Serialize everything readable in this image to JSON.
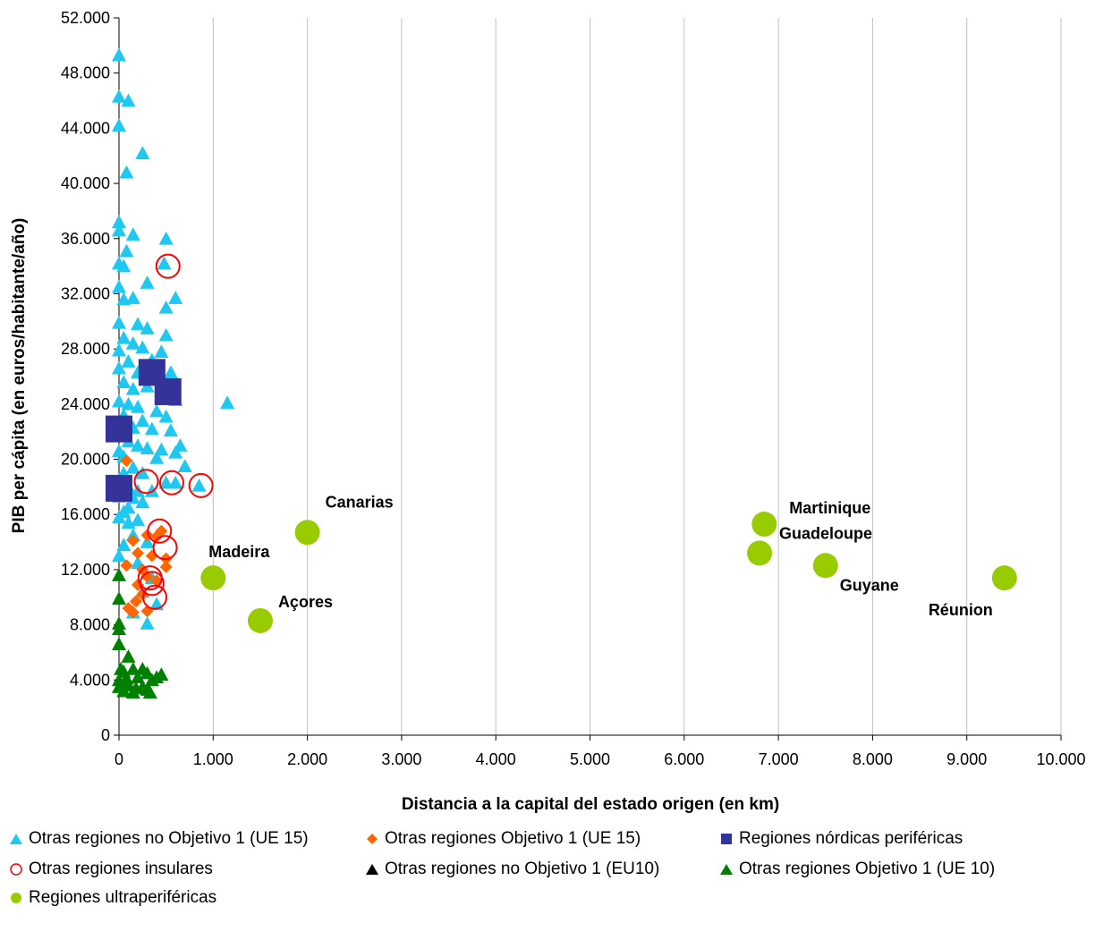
{
  "chart_data": {
    "type": "scatter",
    "title": "",
    "xlabel": "Distancia a la capital del estado origen (en km)",
    "ylabel": "PIB per cápita (en euros/habitante/año)",
    "xlim": [
      0,
      10000
    ],
    "ylim": [
      0,
      52000
    ],
    "x_ticks": [
      0,
      1000,
      2000,
      3000,
      4000,
      5000,
      6000,
      7000,
      8000,
      9000,
      10000
    ],
    "x_tick_labels": [
      "0",
      "1.000",
      "2.000",
      "3.000",
      "4.000",
      "5.000",
      "6.000",
      "7.000",
      "8.000",
      "9.000",
      "10.000"
    ],
    "y_ticks": [
      0,
      4000,
      8000,
      12000,
      16000,
      20000,
      24000,
      28000,
      32000,
      36000,
      40000,
      44000,
      48000,
      52000
    ],
    "y_tick_labels": [
      "0",
      "4.000",
      "8.000",
      "12.000",
      "16.000",
      "20.000",
      "24.000",
      "28.000",
      "32.000",
      "36.000",
      "40.000",
      "44.000",
      "48.000",
      "52.000"
    ],
    "grid": "vertical",
    "legend_position": "bottom",
    "series": [
      {
        "name": "Otras regiones no Objetivo 1 (UE 15)",
        "marker": "triangle",
        "color": "#1EC8F0",
        "points": [
          [
            0,
            49300
          ],
          [
            0,
            46300
          ],
          [
            100,
            46000
          ],
          [
            0,
            44200
          ],
          [
            250,
            42200
          ],
          [
            80,
            40800
          ],
          [
            0,
            37200
          ],
          [
            0,
            36600
          ],
          [
            150,
            36300
          ],
          [
            500,
            36000
          ],
          [
            80,
            35100
          ],
          [
            0,
            34200
          ],
          [
            50,
            34000
          ],
          [
            480,
            34200
          ],
          [
            0,
            32500
          ],
          [
            300,
            32800
          ],
          [
            600,
            31700
          ],
          [
            50,
            31600
          ],
          [
            150,
            31700
          ],
          [
            500,
            31000
          ],
          [
            0,
            29900
          ],
          [
            200,
            29800
          ],
          [
            300,
            29500
          ],
          [
            500,
            29000
          ],
          [
            50,
            28800
          ],
          [
            150,
            28400
          ],
          [
            0,
            27900
          ],
          [
            250,
            28100
          ],
          [
            450,
            27800
          ],
          [
            100,
            27100
          ],
          [
            350,
            27200
          ],
          [
            0,
            26600
          ],
          [
            200,
            26300
          ],
          [
            550,
            26300
          ],
          [
            50,
            25600
          ],
          [
            150,
            25100
          ],
          [
            300,
            25300
          ],
          [
            600,
            24300
          ],
          [
            1150,
            24100
          ],
          [
            0,
            24200
          ],
          [
            100,
            24000
          ],
          [
            200,
            23800
          ],
          [
            400,
            23500
          ],
          [
            50,
            23200
          ],
          [
            250,
            22800
          ],
          [
            500,
            23100
          ],
          [
            0,
            22400
          ],
          [
            150,
            22300
          ],
          [
            350,
            22200
          ],
          [
            550,
            22100
          ],
          [
            650,
            21000
          ],
          [
            100,
            21300
          ],
          [
            200,
            21000
          ],
          [
            300,
            20800
          ],
          [
            450,
            20700
          ],
          [
            0,
            20600
          ],
          [
            50,
            20200
          ],
          [
            600,
            20500
          ],
          [
            400,
            20100
          ],
          [
            700,
            19500
          ],
          [
            150,
            19400
          ],
          [
            250,
            19000
          ],
          [
            50,
            19000
          ],
          [
            0,
            18500
          ],
          [
            500,
            18300
          ],
          [
            600,
            18300
          ],
          [
            850,
            18100
          ],
          [
            100,
            18000
          ],
          [
            200,
            17700
          ],
          [
            350,
            17700
          ],
          [
            0,
            17300
          ],
          [
            150,
            17200
          ],
          [
            100,
            16500
          ],
          [
            250,
            16900
          ],
          [
            50,
            16200
          ],
          [
            0,
            15800
          ],
          [
            200,
            15600
          ],
          [
            100,
            15400
          ],
          [
            150,
            14500
          ],
          [
            300,
            14000
          ],
          [
            50,
            13800
          ],
          [
            0,
            13000
          ],
          [
            200,
            12500
          ],
          [
            350,
            11400
          ],
          [
            250,
            10400
          ],
          [
            400,
            9500
          ],
          [
            150,
            8900
          ],
          [
            300,
            8100
          ]
        ]
      },
      {
        "name": "Otras regiones Objetivo 1 (UE 15)",
        "marker": "diamond",
        "color": "#FF6600",
        "points": [
          [
            80,
            19900
          ],
          [
            150,
            14100
          ],
          [
            300,
            14500
          ],
          [
            400,
            14400
          ],
          [
            450,
            14800
          ],
          [
            200,
            13200
          ],
          [
            350,
            13000
          ],
          [
            500,
            12800
          ],
          [
            80,
            12300
          ],
          [
            250,
            12000
          ],
          [
            500,
            12200
          ],
          [
            300,
            11500
          ],
          [
            200,
            10900
          ],
          [
            400,
            11200
          ],
          [
            250,
            10200
          ],
          [
            180,
            9700
          ],
          [
            100,
            9200
          ],
          [
            150,
            8900
          ],
          [
            300,
            9000
          ]
        ]
      },
      {
        "name": "Regiones nórdicas periféricas",
        "marker": "square",
        "color": "#333399",
        "points": [
          [
            350,
            26300
          ],
          [
            520,
            24900
          ],
          [
            0,
            22200
          ],
          [
            0,
            17900
          ]
        ]
      },
      {
        "name": "Otras regiones insulares",
        "marker": "circle-open",
        "color": "#FF0000",
        "points": [
          [
            520,
            34000
          ],
          [
            290,
            18400
          ],
          [
            560,
            18300
          ],
          [
            870,
            18100
          ],
          [
            430,
            14800
          ],
          [
            490,
            13600
          ],
          [
            330,
            11400
          ],
          [
            350,
            11000
          ],
          [
            380,
            10000
          ]
        ]
      },
      {
        "name": "Otras regiones no Objetivo 1 (EU10)",
        "marker": "triangle",
        "color": "#000000",
        "points": []
      },
      {
        "name": "Otras regiones Objetivo 1 (UE 10)",
        "marker": "triangle",
        "color": "#008000",
        "points": [
          [
            0,
            11600
          ],
          [
            0,
            9900
          ],
          [
            0,
            8100
          ],
          [
            0,
            7700
          ],
          [
            0,
            6600
          ],
          [
            100,
            5700
          ],
          [
            20,
            4800
          ],
          [
            50,
            4600
          ],
          [
            150,
            4800
          ],
          [
            250,
            4800
          ],
          [
            300,
            4500
          ],
          [
            450,
            4400
          ],
          [
            0,
            4000
          ],
          [
            80,
            4100
          ],
          [
            200,
            4200
          ],
          [
            350,
            4000
          ],
          [
            400,
            4200
          ],
          [
            0,
            3500
          ],
          [
            100,
            3600
          ],
          [
            180,
            3400
          ],
          [
            250,
            3500
          ],
          [
            300,
            3300
          ],
          [
            50,
            3200
          ],
          [
            150,
            3100
          ],
          [
            330,
            3100
          ]
        ]
      },
      {
        "name": "Regiones ultraperiféricas",
        "marker": "circle",
        "color": "#99CC00",
        "points": [
          [
            2000,
            14700
          ],
          [
            1000,
            11400
          ],
          [
            1500,
            8300
          ],
          [
            6850,
            15300
          ],
          [
            6800,
            13200
          ],
          [
            7500,
            12300
          ],
          [
            9400,
            11400
          ]
        ]
      }
    ],
    "annotations": [
      {
        "text": "Canarias",
        "x": 2000,
        "y": 14700
      },
      {
        "text": "Madeira",
        "x": 1000,
        "y": 11400
      },
      {
        "text": "Açores",
        "x": 1500,
        "y": 8300
      },
      {
        "text": "Martinique",
        "x": 6850,
        "y": 15300
      },
      {
        "text": "Guadeloupe",
        "x": 6800,
        "y": 13200
      },
      {
        "text": "Guyane",
        "x": 7500,
        "y": 12300
      },
      {
        "text": "Réunion",
        "x": 9400,
        "y": 11400
      }
    ]
  }
}
